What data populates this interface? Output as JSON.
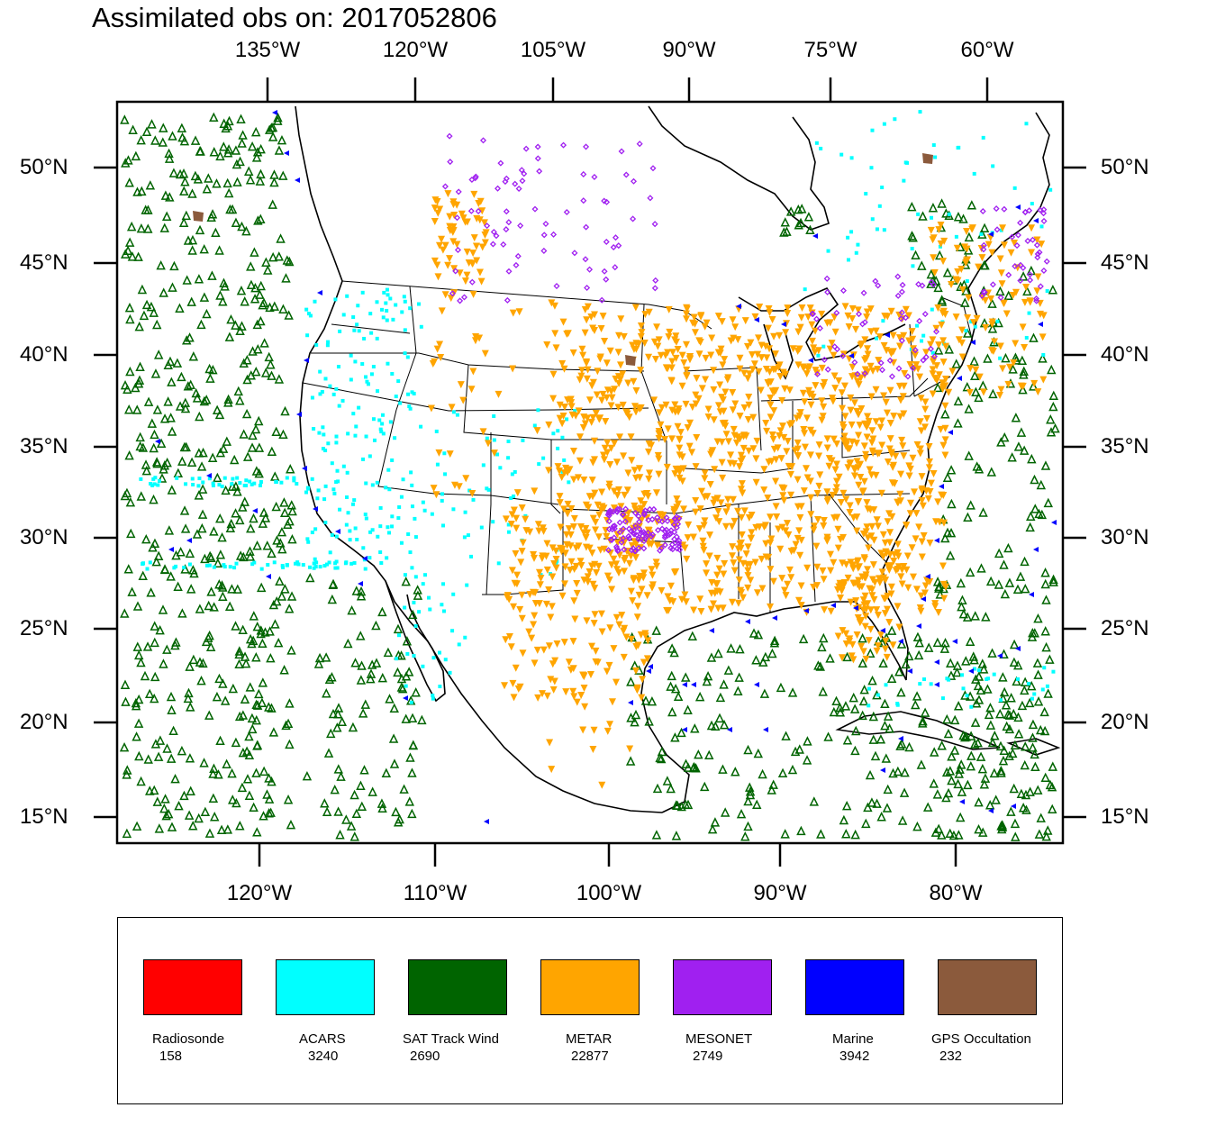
{
  "title": "Assimilated obs on: 2017052806",
  "axes": {
    "top_lon_labels": [
      "135°W",
      "120°W",
      "105°W",
      "90°W",
      "75°W",
      "60°W"
    ],
    "bottom_lon_labels": [
      "120°W",
      "110°W",
      "100°W",
      "90°W",
      "80°W"
    ],
    "lat_labels": [
      "50°N",
      "45°N",
      "40°N",
      "35°N",
      "30°N",
      "25°N",
      "20°N",
      "15°N"
    ]
  },
  "legend": [
    {
      "name": "Radiosonde",
      "count": "158",
      "color": "#ff0000"
    },
    {
      "name": "ACARS",
      "count": "3240",
      "color": "#00ffff"
    },
    {
      "name": "SAT Track Wind",
      "count": "2690",
      "color": "#006400"
    },
    {
      "name": "METAR",
      "count": "22877",
      "color": "#ffa500"
    },
    {
      "name": "MESONET",
      "count": "2749",
      "color": "#a020f0"
    },
    {
      "name": "Marine",
      "count": "3942",
      "color": "#0000ff"
    },
    {
      "name": "GPS Occultation",
      "count": "232",
      "color": "#8b5a3c"
    }
  ]
}
